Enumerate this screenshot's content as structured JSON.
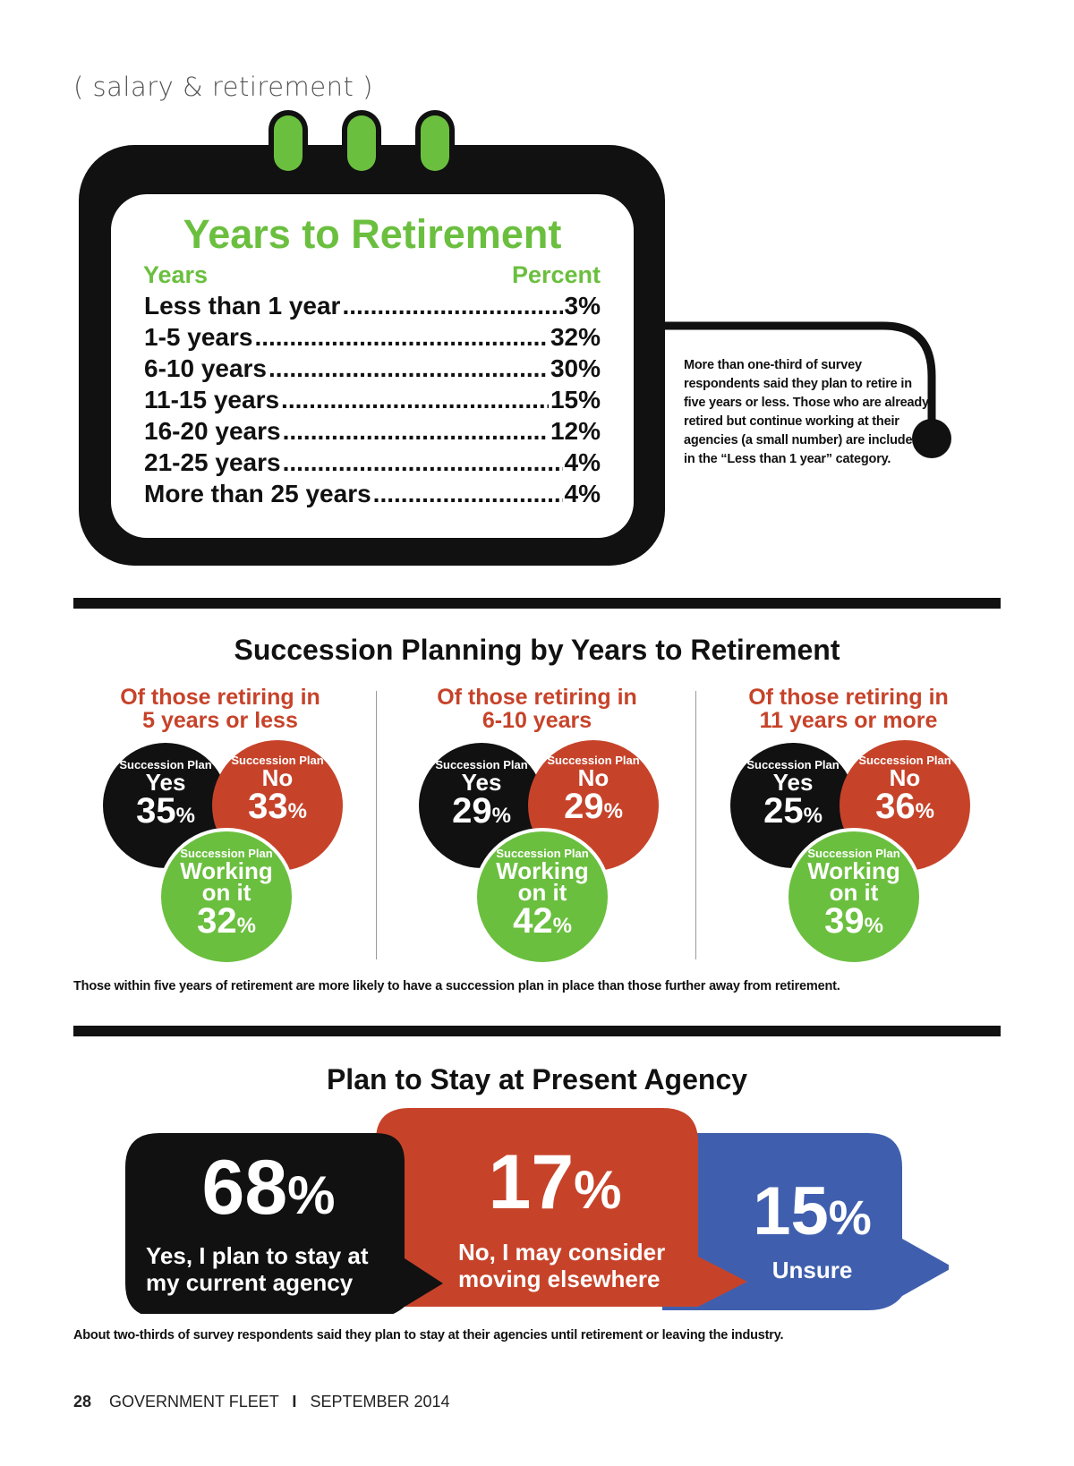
{
  "section_tag": "( salary & retirement )",
  "years_table": {
    "title": "Years to Retirement",
    "col_years": "Years",
    "col_percent": "Percent",
    "rows": [
      {
        "label": "Less than 1 year",
        "value": "3%"
      },
      {
        "label": "1-5 years",
        "value": "32%"
      },
      {
        "label": "6-10 years",
        "value": "30%"
      },
      {
        "label": "11-15 years",
        "value": "15%"
      },
      {
        "label": "16-20 years",
        "value": "12%"
      },
      {
        "label": "21-25 years",
        "value": "4%"
      },
      {
        "label": "More than 25 years",
        "value": "4%"
      }
    ],
    "note": "More than one-third of survey respondents said they plan to retire in five years or less. Those who are already retired but continue working at their agencies (a small number) are included in the “Less than 1 year” category."
  },
  "succession": {
    "title": "Succession Planning by Years to Retirement",
    "small_label": "Succession Plan",
    "yes_label": "Yes",
    "no_label": "No",
    "working_label_1": "Working",
    "working_label_2": "on it",
    "groups": [
      {
        "head_1": "Of those retiring in",
        "head_2": "5 years or less",
        "yes": "35",
        "no": "33",
        "working": "32"
      },
      {
        "head_1": "Of those retiring in",
        "head_2": "6-10 years",
        "yes": "29",
        "no": "29",
        "working": "42"
      },
      {
        "head_1": "Of those retiring in",
        "head_2": "11 years or more",
        "yes": "25",
        "no": "36",
        "working": "39"
      }
    ],
    "caption": "Those within five years of retirement are more likely to have a succession plan in place than those further away from retirement."
  },
  "stay": {
    "title": "Plan to Stay at Present Agency",
    "items": [
      {
        "pct": "68",
        "label_1": "Yes, I plan to stay at",
        "label_2": "my current agency",
        "color": "#111111"
      },
      {
        "pct": "17",
        "label_1": "No, I may consider",
        "label_2": "moving elsewhere",
        "color": "#c6432a"
      },
      {
        "pct": "15",
        "label_1": "Unsure",
        "label_2": "",
        "color": "#3f5fae"
      }
    ],
    "caption": "About two-thirds of survey respondents said they plan to stay at their agencies until retirement or leaving the industry."
  },
  "footer": {
    "page": "28",
    "publication": "GOVERNMENT FLEET",
    "separator": "I",
    "date": "SEPTEMBER 2014"
  },
  "colors": {
    "green": "#6bbf3f",
    "red": "#c6432a",
    "blue": "#3f5fae",
    "black": "#111111"
  }
}
